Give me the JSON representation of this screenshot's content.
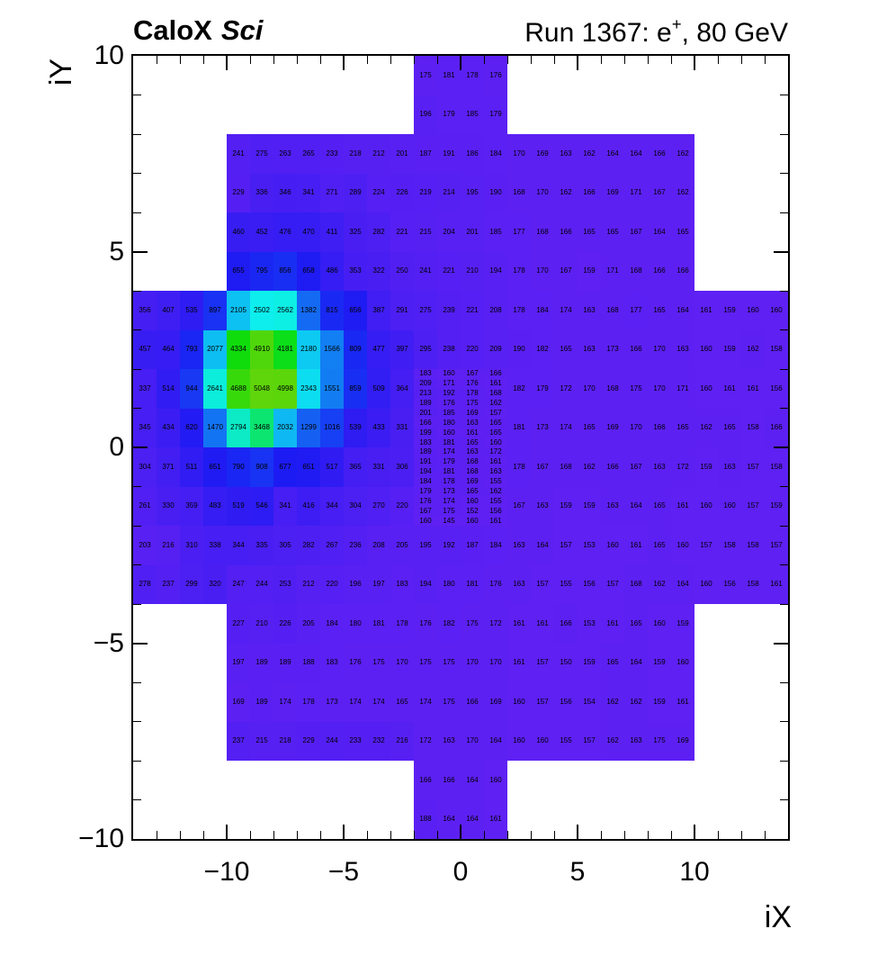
{
  "chart_data": {
    "type": "heatmap",
    "title_left": {
      "bold": "CaloX",
      "italic": "Sci"
    },
    "title_right": {
      "pre": "Run 1367: e",
      "sup": "+",
      "post": ", 80 GeV"
    },
    "xlabel": "iX",
    "ylabel": "iY",
    "x_range": [
      -14,
      14
    ],
    "y_range": [
      -10,
      10
    ],
    "xticks": [
      -10,
      -5,
      0,
      5,
      10
    ],
    "yticks": [
      -10,
      -5,
      0,
      5,
      10
    ],
    "grid": false,
    "legend": "none",
    "cell_text_color": "#000000",
    "palette": {
      "description": "rainbow violet-to-green mapped linearly on cell value",
      "v_min": 145,
      "v_max": 5050,
      "hue_start": 258,
      "hue_end": 95,
      "sat": 90,
      "light_start": 54,
      "light_end": 44,
      "low_color_hex": "#6128ef",
      "high_color_hex": "#63db04"
    },
    "rows": [
      {
        "iy": 9,
        "segments": [
          {
            "x_start": -2,
            "values": [
              175,
              181,
              178,
              176
            ]
          }
        ]
      },
      {
        "iy": 8,
        "segments": [
          {
            "x_start": -2,
            "values": [
              196,
              179,
              185,
              179
            ]
          }
        ]
      },
      {
        "iy": 7,
        "segments": [
          {
            "x_start": -10,
            "values": [
              241,
              275,
              263,
              265,
              233,
              218,
              212,
              201,
              187,
              191,
              186,
              184,
              170,
              169,
              163,
              162,
              164,
              164,
              166,
              162
            ]
          }
        ]
      },
      {
        "iy": 6,
        "segments": [
          {
            "x_start": -10,
            "values": [
              229,
              336,
              346,
              341,
              271,
              289,
              224,
              226,
              219,
              214,
              195,
              190,
              168,
              170,
              162,
              166,
              169,
              171,
              167,
              162
            ]
          }
        ]
      },
      {
        "iy": 5,
        "segments": [
          {
            "x_start": -10,
            "values": [
              460,
              452,
              476,
              470,
              411,
              325,
              282,
              221,
              215,
              204,
              201,
              185,
              177,
              168,
              166,
              165,
              165,
              167,
              164,
              165
            ]
          }
        ]
      },
      {
        "iy": 4,
        "segments": [
          {
            "x_start": -10,
            "values": [
              655,
              795,
              856,
              658,
              486,
              353,
              322,
              250,
              241,
              221,
              210,
              194,
              178,
              170,
              167,
              159,
              171,
              168,
              166,
              166
            ]
          }
        ]
      },
      {
        "iy": 3,
        "segments": [
          {
            "x_start": -14,
            "values": [
              356,
              407,
              535,
              897,
              2105,
              2502,
              2562,
              1382,
              815,
              656,
              387,
              291,
              275,
              239,
              221,
              208,
              178,
              184,
              174,
              163,
              168,
              177,
              165,
              164,
              161,
              159,
              160,
              160
            ]
          }
        ]
      },
      {
        "iy": 2,
        "segments": [
          {
            "x_start": -14,
            "values": [
              457,
              464,
              793,
              2077,
              4334,
              4910,
              4181,
              2180,
              1566,
              809,
              477,
              397,
              295,
              238,
              220,
              209,
              190,
              182,
              165,
              163,
              173,
              166,
              170,
              163,
              160,
              159,
              162,
              158
            ]
          }
        ]
      },
      {
        "iy": 1,
        "segments": [
          {
            "x_start": -14,
            "values": [
              337,
              514,
              944,
              2641,
              4688,
              5048,
              4998,
              2343,
              1551,
              859,
              509,
              364
            ]
          },
          {
            "x_start": 2,
            "values": [
              182,
              179,
              172,
              170,
              168,
              175,
              170,
              171,
              160,
              161,
              161,
              156
            ]
          }
        ]
      },
      {
        "iy": 0,
        "segments": [
          {
            "x_start": -14,
            "values": [
              345,
              434,
              620,
              1470,
              2794,
              3468,
              2032,
              1299,
              1016,
              539,
              433,
              331
            ]
          },
          {
            "x_start": 2,
            "values": [
              181,
              173,
              174,
              165,
              169,
              170,
              166,
              165,
              162,
              165,
              158,
              166
            ]
          }
        ]
      },
      {
        "iy": -1,
        "segments": [
          {
            "x_start": -14,
            "values": [
              304,
              371,
              511,
              651,
              790,
              908,
              677,
              651,
              517,
              365,
              331,
              306
            ]
          },
          {
            "x_start": 2,
            "values": [
              178,
              167,
              168,
              162,
              166,
              167,
              163,
              172,
              159,
              163,
              157,
              158
            ]
          }
        ]
      },
      {
        "iy": -2,
        "segments": [
          {
            "x_start": -14,
            "values": [
              261,
              330,
              359,
              483,
              519,
              546,
              341,
              416,
              344,
              304,
              270,
              220
            ]
          },
          {
            "x_start": 2,
            "values": [
              167,
              163,
              159,
              159,
              163,
              164,
              165,
              161,
              160,
              160,
              157,
              159
            ]
          }
        ]
      },
      {
        "iy": -3,
        "segments": [
          {
            "x_start": -14,
            "values": [
              203,
              216,
              310,
              338,
              344,
              335,
              305,
              282,
              267,
              236,
              208,
              205,
              195,
              192,
              187,
              184,
              163,
              164,
              157,
              153,
              160,
              161,
              165,
              160,
              157,
              158,
              158,
              157
            ]
          }
        ]
      },
      {
        "iy": -4,
        "segments": [
          {
            "x_start": -14,
            "values": [
              278,
              237,
              299,
              320,
              247,
              244,
              253,
              212,
              220,
              196,
              197,
              183,
              194,
              180,
              181,
              176,
              163,
              157,
              155,
              156,
              157,
              168,
              162,
              164,
              160,
              156,
              158,
              161
            ]
          }
        ]
      },
      {
        "iy": -5,
        "segments": [
          {
            "x_start": -10,
            "values": [
              227,
              210,
              226,
              205,
              184,
              180,
              181,
              178,
              176,
              182,
              175,
              172,
              161,
              161,
              166,
              153,
              161,
              165,
              160,
              159
            ]
          }
        ]
      },
      {
        "iy": -6,
        "segments": [
          {
            "x_start": -10,
            "values": [
              197,
              189,
              189,
              188,
              183,
              176,
              175,
              170,
              175,
              175,
              170,
              170,
              161,
              157,
              150,
              159,
              165,
              164,
              159,
              160
            ]
          }
        ]
      },
      {
        "iy": -7,
        "segments": [
          {
            "x_start": -10,
            "values": [
              169,
              189,
              174,
              178,
              173,
              174,
              174,
              165,
              174,
              175,
              166,
              169,
              160,
              157,
              156,
              154,
              162,
              162,
              159,
              161
            ]
          }
        ]
      },
      {
        "iy": -8,
        "segments": [
          {
            "x_start": -10,
            "values": [
              237,
              215,
              218,
              229,
              244,
              233,
              232,
              216,
              172,
              163,
              170,
              164,
              160,
              160,
              155,
              157,
              162,
              163,
              175,
              169
            ]
          }
        ]
      },
      {
        "iy": -9,
        "segments": [
          {
            "x_start": -2,
            "values": [
              166,
              166,
              164,
              160
            ]
          }
        ]
      },
      {
        "iy": -10,
        "segments": [
          {
            "x_start": -2,
            "values": [
              188,
              164,
              164,
              161
            ]
          }
        ]
      }
    ],
    "fine_block": {
      "x_start": -2,
      "y_top": 2,
      "cols": 4,
      "sub_rows_per_unit": 4,
      "lines": [
        [
          183,
          160,
          167,
          166
        ],
        [
          209,
          171,
          176,
          161
        ],
        [
          213,
          192,
          178,
          168
        ],
        [
          189,
          176,
          175,
          162
        ],
        [
          201,
          185,
          169,
          157
        ],
        [
          166,
          180,
          163,
          165
        ],
        [
          199,
          160,
          161,
          165
        ],
        [
          183,
          181,
          165,
          160
        ],
        [
          189,
          174,
          163,
          172
        ],
        [
          191,
          179,
          168,
          161
        ],
        [
          194,
          181,
          168,
          163
        ],
        [
          184,
          178,
          169,
          155
        ],
        [
          179,
          173,
          165,
          162
        ],
        [
          176,
          174,
          160,
          155
        ],
        [
          167,
          175,
          152,
          156
        ],
        [
          160,
          145,
          160,
          161
        ]
      ]
    }
  }
}
